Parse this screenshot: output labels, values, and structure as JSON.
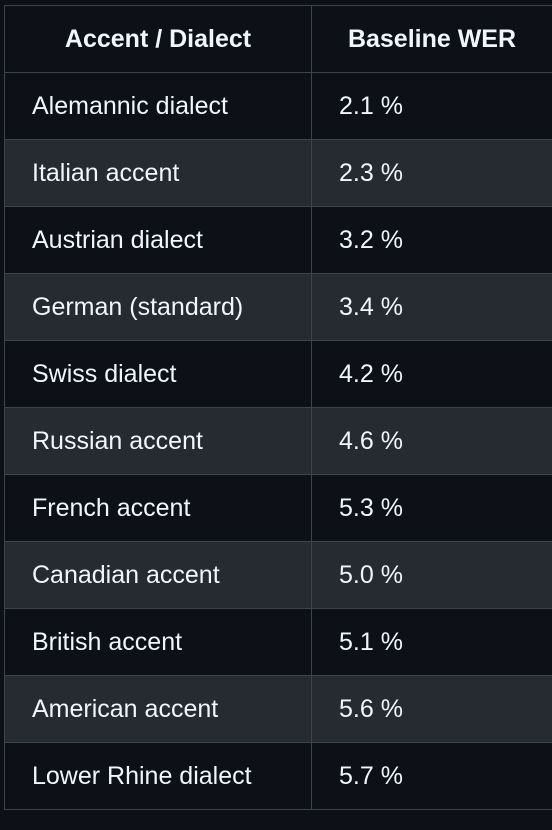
{
  "table": {
    "headers": [
      "Accent / Dialect",
      "Baseline WER"
    ],
    "rows": [
      [
        "Alemannic dialect",
        "2.1 %"
      ],
      [
        "Italian accent",
        "2.3 %"
      ],
      [
        "Austrian dialect",
        "3.2 %"
      ],
      [
        "German (standard)",
        "3.4 %"
      ],
      [
        "Swiss dialect",
        "4.2 %"
      ],
      [
        "Russian accent",
        "4.6 %"
      ],
      [
        "French accent",
        "5.3 %"
      ],
      [
        "Canadian accent",
        "5.0 %"
      ],
      [
        "British accent",
        "5.1 %"
      ],
      [
        "American accent",
        "5.6 %"
      ],
      [
        "Lower Rhine dialect",
        "5.7 %"
      ]
    ]
  },
  "colors": {
    "background": "#0d1117",
    "row_alt": "#262a31",
    "border": "#3d444d",
    "text": "#f0f6fc"
  }
}
